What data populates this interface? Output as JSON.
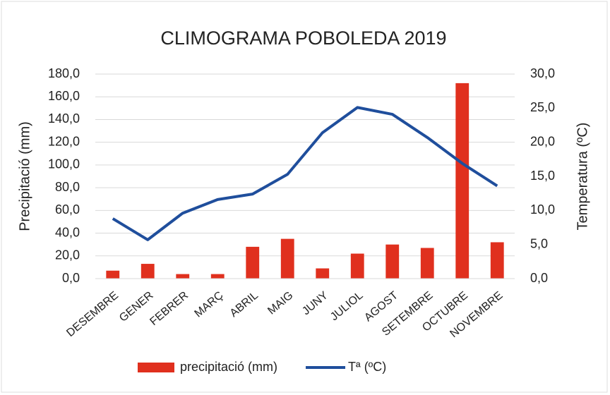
{
  "chart_data": {
    "type": "bar",
    "title": "CLIMOGRAMA POBOLEDA 2019",
    "y_label": "Precipitació (mm)",
    "y2_label": "Temperatura (ºC)",
    "categories": [
      "DESEMBRE",
      "GENER",
      "FEBRER",
      "MARÇ",
      "ABRIL",
      "MAIG",
      "JUNY",
      "JULIOL",
      "AGOST",
      "SETEMBRE",
      "OCTUBRE",
      "NOVEMBRE"
    ],
    "series": [
      {
        "name": "precipitació (mm)",
        "type": "bar",
        "color": "#e0301e",
        "values": [
          7,
          13,
          4,
          4,
          28,
          35,
          9,
          22,
          30,
          27,
          172,
          32
        ]
      },
      {
        "name": "Tª (ºC)",
        "type": "line",
        "axis": "y2",
        "color": "#1f4e9c",
        "values": [
          8.8,
          5.7,
          9.6,
          11.6,
          12.4,
          15.3,
          21.4,
          25.1,
          24.1,
          20.7,
          16.9,
          13.6
        ]
      }
    ],
    "ylim": [
      0,
      180
    ],
    "yticks": [
      {
        "value": 0,
        "label": "0,0"
      },
      {
        "value": 20,
        "label": "20,0"
      },
      {
        "value": 40,
        "label": "40,0"
      },
      {
        "value": 60,
        "label": "60,0"
      },
      {
        "value": 80,
        "label": "80,0"
      },
      {
        "value": 100,
        "label": "100,0"
      },
      {
        "value": 120,
        "label": "120,0"
      },
      {
        "value": 140,
        "label": "140,0"
      },
      {
        "value": 160,
        "label": "160,0"
      },
      {
        "value": 180,
        "label": "180,0"
      }
    ],
    "y2lim": [
      0,
      30
    ],
    "y2ticks": [
      {
        "value": 0,
        "label": "0,0"
      },
      {
        "value": 5,
        "label": "5,0"
      },
      {
        "value": 10,
        "label": "10,0"
      },
      {
        "value": 15,
        "label": "15,0"
      },
      {
        "value": 20,
        "label": "20,0"
      },
      {
        "value": 25,
        "label": "25,0"
      },
      {
        "value": 30,
        "label": "30,0"
      }
    ],
    "grid": true,
    "legend": "bottom"
  }
}
